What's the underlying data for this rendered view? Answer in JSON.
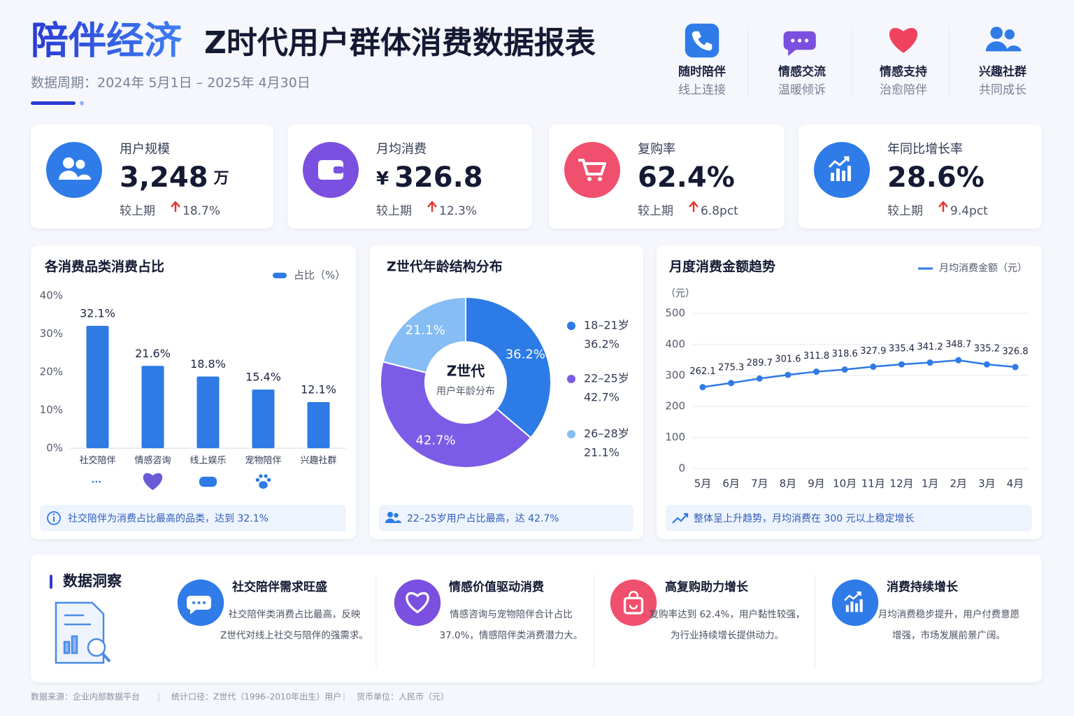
{
  "header": {
    "brand": "陪伴经济",
    "title": "Z时代用户群体消费数据报表",
    "period": "数据周期：2024年 5月1日 – 2025年 4月30日",
    "features": [
      {
        "title": "随时陪伴",
        "subtitle": "线上连接"
      },
      {
        "title": "情感交流",
        "subtitle": "温暖倾诉"
      },
      {
        "title": "情感支持",
        "subtitle": "治愈陪伴"
      },
      {
        "title": "兴趣社群",
        "subtitle": "共同成长"
      }
    ]
  },
  "kpis": [
    {
      "label": "用户规模",
      "value": "3,248",
      "unit": "万",
      "compare": "较上期",
      "change": "18.7%"
    },
    {
      "label": "月均消费",
      "prefix": "¥",
      "value": "326.8",
      "compare": "较上期",
      "change": "12.3%"
    },
    {
      "label": "复购率",
      "value": "62.4%",
      "compare": "较上期",
      "change": "6.8pct"
    },
    {
      "label": "年同比增长率",
      "value": "28.6%",
      "compare": "较上期",
      "change": "9.4pct"
    }
  ],
  "chart_data": [
    {
      "type": "bar",
      "title": "各消费品类消费占比",
      "categories": [
        "社交陪伴",
        "情感咨询",
        "线上娱乐",
        "宠物陪伴",
        "兴趣社群"
      ],
      "series": [
        {
          "name": "占比（%）",
          "color": "#2f7ae5",
          "values": [
            32.1,
            21.6,
            18.8,
            15.4,
            12.1
          ],
          "value_labels": [
            "32.1%",
            "21.6%",
            "18.8%",
            "15.4%",
            "12.1%"
          ]
        }
      ],
      "ylim": [
        0,
        40
      ],
      "yticks": [
        {
          "value": 0,
          "label": "0%"
        },
        {
          "value": 10,
          "label": "10%"
        },
        {
          "value": 20,
          "label": "20%"
        },
        {
          "value": 30,
          "label": "30%"
        },
        {
          "value": 40,
          "label": "40%"
        }
      ],
      "grid": false,
      "note": "社交陪伴为消费占比最高的品类，达到 32.1%"
    },
    {
      "type": "donut",
      "title": "Z世代年龄结构分布",
      "center_title": "Z世代",
      "center_subtitle": "用户年龄分布",
      "categories": [
        "18–21岁",
        "22–25岁",
        "26–28岁"
      ],
      "values": [
        36.2,
        42.7,
        21.1
      ],
      "value_labels": [
        "36.2%",
        "42.7%",
        "21.1%"
      ],
      "colors": [
        "#2d7be6",
        "#7b5ce6",
        "#86bdf4"
      ],
      "note": "22–25岁用户占比最高，达 42.7%"
    },
    {
      "type": "line",
      "title": "月度消费金额趋势",
      "y_label": "（元）",
      "categories": [
        "5月",
        "6月",
        "7月",
        "8月",
        "9月",
        "10月",
        "11月",
        "12月",
        "1月",
        "2月",
        "3月",
        "4月"
      ],
      "series": [
        {
          "name": "月均消费金额（元）",
          "color": "#2f7ae5",
          "values": [
            262.1,
            275.3,
            289.7,
            301.6,
            311.8,
            318.6,
            327.9,
            335.4,
            341.2,
            348.7,
            335.2,
            326.8
          ]
        }
      ],
      "ylim": [
        0,
        500
      ],
      "yticks": [
        0,
        100,
        200,
        300,
        400,
        500
      ],
      "grid": true,
      "note": "整体呈上升趋势，月均消费在 300 元以上稳定增长"
    }
  ],
  "insights": {
    "title": "数据洞察",
    "items": [
      {
        "title": "社交陪伴需求旺盛",
        "lines": [
          "社交陪伴类消费占比最高，反映",
          "Z世代对线上社交与陪伴的强需求。"
        ]
      },
      {
        "title": "情感价值驱动消费",
        "lines": [
          "情感咨询与宠物陪伴合计占比",
          "37.0%，情感陪伴类消费潜力大。"
        ]
      },
      {
        "title": "高复购助力增长",
        "lines": [
          "复购率达到 62.4%，用户黏性较强，",
          "为行业持续增长提供动力。"
        ]
      },
      {
        "title": "消费持续增长",
        "lines": [
          "月均消费稳步提升，用户付费意愿",
          "增强，市场发展前景广阔。"
        ]
      }
    ]
  },
  "footer": [
    "数据来源：企业内部数据平台",
    "统计口径：Z世代（1996–2010年出生）用户",
    "货币单位：人民币（元）"
  ]
}
